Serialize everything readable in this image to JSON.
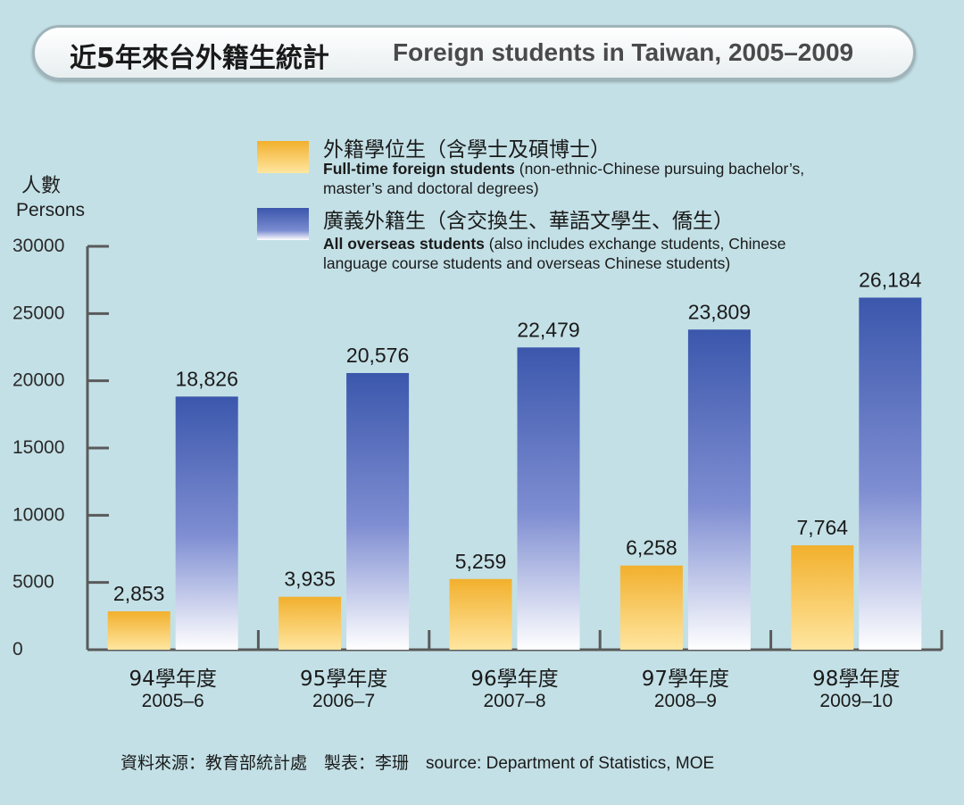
{
  "title": {
    "cn": "近5年來台外籍生統計",
    "en": "Foreign students in Taiwan, 2005–2009"
  },
  "yaxis": {
    "unit_cn": "人數",
    "unit_en": "Persons"
  },
  "legend": [
    {
      "cn": "外籍學位生（含學士及碩博士）",
      "en_bold": "Full-time foreign students",
      "en_rest_1": " (non-ethnic-Chinese pursuing bachelor’s,",
      "en_rest_2": "master’s and doctoral degrees)"
    },
    {
      "cn": "廣義外籍生（含交換生、華語文學生、僑生）",
      "en_bold": "All overseas students",
      "en_rest_1": " (also includes exchange students, Chinese",
      "en_rest_2": "language course students and overseas Chinese students)"
    }
  ],
  "source": {
    "cn": "資料來源：教育部統計處　製表：李珊",
    "en": "source: Department of Statistics, MOE"
  },
  "colors": {
    "full_time_top": "#f2b02d",
    "full_time_bottom": "#ffe6a0",
    "overseas_top": "#3b57ac",
    "overseas_bottom": "#ffffff",
    "axis": "#5a5a5a",
    "background": "#c3e0e6"
  },
  "chart_data": {
    "type": "bar",
    "title": "近5年來台外籍生統計 Foreign students in Taiwan, 2005–2009",
    "ylabel": "人數 Persons",
    "ylim": [
      0,
      30000
    ],
    "yticks": [
      0,
      5000,
      10000,
      15000,
      20000,
      25000,
      30000
    ],
    "ytick_labels": [
      "0",
      "5000",
      "10000",
      "15000",
      "20000",
      "25000",
      "30000"
    ],
    "grid": false,
    "legend_position": "top",
    "categories": [
      {
        "cn": "94學年度",
        "en": "2005–6"
      },
      {
        "cn": "95學年度",
        "en": "2006–7"
      },
      {
        "cn": "96學年度",
        "en": "2007–8"
      },
      {
        "cn": "97學年度",
        "en": "2008–9"
      },
      {
        "cn": "98學年度",
        "en": "2009–10"
      }
    ],
    "series": [
      {
        "name": "Full-time foreign students",
        "values": [
          2853,
          3935,
          5259,
          6258,
          7764
        ],
        "labels": [
          "2,853",
          "3,935",
          "5,259",
          "6,258",
          "7,764"
        ]
      },
      {
        "name": "All overseas students",
        "values": [
          18826,
          20576,
          22479,
          23809,
          26184
        ],
        "labels": [
          "18,826",
          "20,576",
          "22,479",
          "23,809",
          "26,184"
        ]
      }
    ]
  }
}
